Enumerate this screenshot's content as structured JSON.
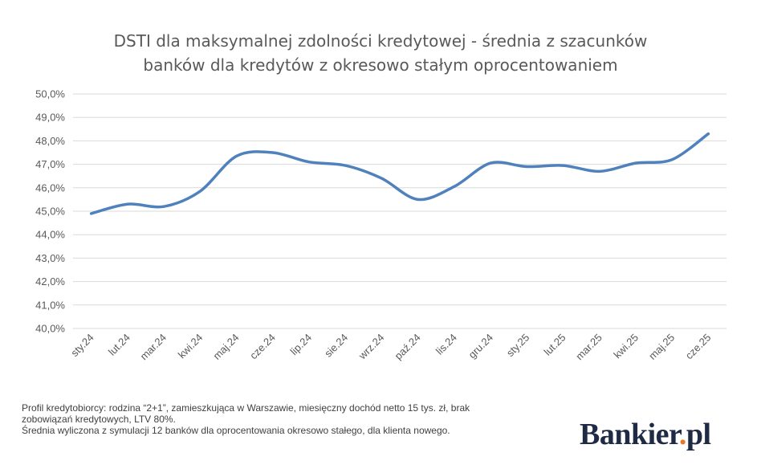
{
  "chart_data": {
    "type": "line",
    "title_lines": [
      "DSTI dla maksymalnej zdolności kredytowej - średnia z szacunków",
      "banków dla kredytów z okresowo stałym oprocentowaniem"
    ],
    "categories": [
      "sty.24",
      "lut.24",
      "mar.24",
      "kwi.24",
      "maj.24",
      "cze.24",
      "lip.24",
      "sie.24",
      "wrz.24",
      "paź.24",
      "lis.24",
      "gru.24",
      "sty.25",
      "lut.25",
      "mar.25",
      "kwi.25",
      "maj.25",
      "cze.25"
    ],
    "series": [
      {
        "values": [
          44.9,
          45.3,
          45.2,
          45.85,
          47.35,
          47.5,
          47.1,
          46.95,
          46.4,
          45.5,
          46.05,
          47.05,
          46.9,
          46.95,
          46.7,
          47.05,
          47.2,
          48.3
        ],
        "color": "#4f81bd"
      }
    ],
    "ylim": [
      40,
      50
    ],
    "yticks": [
      "40,0%",
      "41,0%",
      "42,0%",
      "43,0%",
      "44,0%",
      "45,0%",
      "46,0%",
      "47,0%",
      "48,0%",
      "49,0%",
      "50,0%"
    ],
    "grid": true,
    "legend": "none"
  },
  "notes": [
    "Profil kredytobiorcy: rodzina “2+1”, zamieszkująca w Warszawie, miesięczny dochód netto 15 tys. zł, brak",
    "zobowiązań kredytowych, LTV 80%.",
    "Średnia wyliczona z symulacji 12 banków dla oprocentowania okresowo stałego, dla klienta nowego."
  ],
  "logo": {
    "text": "Bankier",
    "dot": ".",
    "suffix": "pl"
  }
}
